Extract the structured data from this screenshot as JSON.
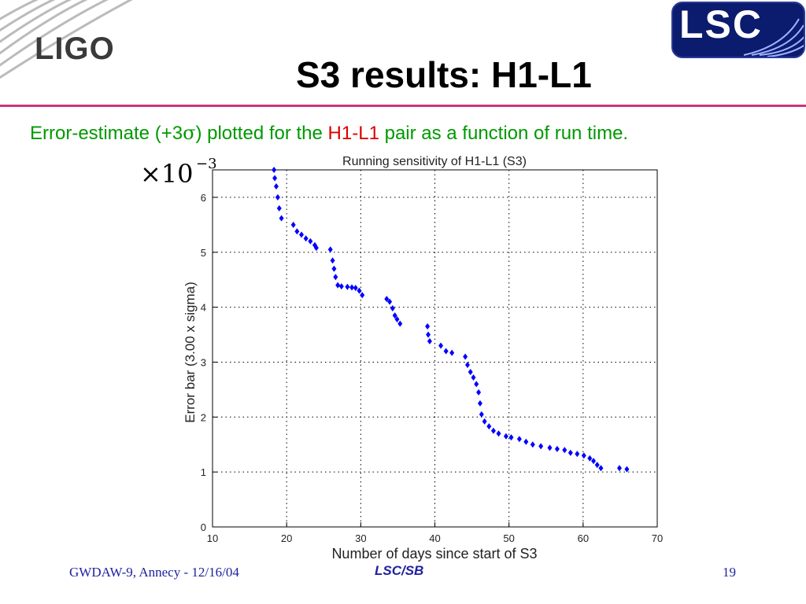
{
  "slide": {
    "title": "S3 results: H1-L1",
    "subtitle": {
      "part1": "Error-estimate (+3",
      "sigma": "σ",
      "part2": ") plotted for the ",
      "highlight": "H1-L1",
      "part3": " pair as a function of run time."
    },
    "ligo_logo_text": "LIGO",
    "lsc_logo_text": "LSC"
  },
  "footer": {
    "left": "GWDAW-9, Annecy - 12/16/04",
    "center": "LSC/SB",
    "page": "19"
  },
  "colors": {
    "accent_rule": "#c8357a",
    "subtitle": "#009900",
    "highlight": "#dd0000",
    "footer": "#1f1fa0",
    "series": "#0000ff",
    "lsc_bg": "#0b1b6e"
  },
  "chart_data": {
    "type": "scatter",
    "title": "Running sensitivity of H1-L1 (S3)",
    "xlabel": "Number of days since start of S3",
    "ylabel": "Error bar (3.00 x sigma)",
    "multiplier_label": "×10",
    "multiplier_exp": "−3",
    "xlim": [
      10,
      70
    ],
    "ylim": [
      0,
      6.5
    ],
    "xticks": [
      "10",
      "20",
      "30",
      "40",
      "50",
      "60",
      "70"
    ],
    "yticks": [
      "0",
      "1",
      "2",
      "3",
      "4",
      "5",
      "6"
    ],
    "grid": true,
    "series": [
      {
        "points": [
          [
            18.3,
            6.5
          ],
          [
            18.4,
            6.35
          ],
          [
            18.6,
            6.2
          ],
          [
            18.8,
            6.0
          ],
          [
            19.0,
            5.8
          ],
          [
            19.3,
            5.62
          ],
          [
            20.9,
            5.5
          ],
          [
            21.4,
            5.38
          ],
          [
            22.0,
            5.32
          ],
          [
            22.6,
            5.25
          ],
          [
            23.2,
            5.2
          ],
          [
            23.8,
            5.13
          ],
          [
            24.0,
            5.08
          ],
          [
            25.9,
            5.05
          ],
          [
            26.2,
            4.85
          ],
          [
            26.4,
            4.7
          ],
          [
            26.6,
            4.55
          ],
          [
            26.9,
            4.4
          ],
          [
            27.4,
            4.38
          ],
          [
            28.2,
            4.37
          ],
          [
            28.8,
            4.36
          ],
          [
            29.3,
            4.35
          ],
          [
            29.8,
            4.3
          ],
          [
            30.2,
            4.22
          ],
          [
            33.5,
            4.15
          ],
          [
            33.9,
            4.1
          ],
          [
            34.3,
            3.98
          ],
          [
            34.6,
            3.85
          ],
          [
            34.9,
            3.78
          ],
          [
            35.3,
            3.7
          ],
          [
            39.0,
            3.65
          ],
          [
            39.1,
            3.5
          ],
          [
            39.3,
            3.38
          ],
          [
            40.8,
            3.3
          ],
          [
            41.5,
            3.2
          ],
          [
            42.3,
            3.17
          ],
          [
            44.1,
            3.1
          ],
          [
            44.4,
            2.95
          ],
          [
            44.8,
            2.82
          ],
          [
            45.2,
            2.72
          ],
          [
            45.6,
            2.6
          ],
          [
            45.9,
            2.45
          ],
          [
            46.1,
            2.25
          ],
          [
            46.3,
            2.05
          ],
          [
            46.7,
            1.92
          ],
          [
            47.3,
            1.83
          ],
          [
            47.9,
            1.75
          ],
          [
            48.6,
            1.7
          ],
          [
            49.6,
            1.65
          ],
          [
            50.3,
            1.63
          ],
          [
            51.4,
            1.6
          ],
          [
            52.3,
            1.55
          ],
          [
            53.2,
            1.5
          ],
          [
            54.3,
            1.47
          ],
          [
            55.5,
            1.44
          ],
          [
            56.5,
            1.42
          ],
          [
            57.5,
            1.4
          ],
          [
            58.3,
            1.35
          ],
          [
            59.2,
            1.33
          ],
          [
            60.1,
            1.3
          ],
          [
            60.9,
            1.25
          ],
          [
            61.4,
            1.2
          ],
          [
            61.9,
            1.13
          ],
          [
            62.4,
            1.07
          ],
          [
            64.9,
            1.07
          ],
          [
            65.9,
            1.05
          ]
        ]
      }
    ]
  }
}
